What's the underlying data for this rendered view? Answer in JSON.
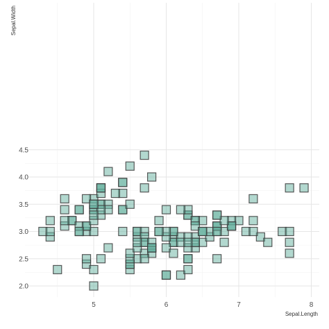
{
  "chart_data": {
    "type": "scatter",
    "title": "",
    "xlabel": "Sepal.Length",
    "ylabel": "Sepal.Width",
    "xlim": [
      4.3,
      7.9
    ],
    "ylim": [
      2.0,
      4.4
    ],
    "x_ticks": [
      5,
      6,
      7,
      8
    ],
    "y_ticks": [
      2.0,
      2.5,
      3.0,
      3.5,
      4.0,
      4.5
    ],
    "x_tick_labels": [
      "5",
      "6",
      "7",
      "8"
    ],
    "y_tick_labels": [
      "2.0",
      "2.5",
      "3.0",
      "3.5",
      "4.0",
      "4.5"
    ],
    "grid": true,
    "legend": "none",
    "marker": "square",
    "colors": {
      "fill": "#66b2a0",
      "stroke": "#3d3d3d",
      "background": "#ffffff",
      "grid": "#e6e6e6"
    },
    "points": [
      [
        5.1,
        3.5
      ],
      [
        4.9,
        3.0
      ],
      [
        4.7,
        3.2
      ],
      [
        4.6,
        3.1
      ],
      [
        5.0,
        3.6
      ],
      [
        5.4,
        3.9
      ],
      [
        4.6,
        3.4
      ],
      [
        5.0,
        3.4
      ],
      [
        4.4,
        2.9
      ],
      [
        4.9,
        3.1
      ],
      [
        5.4,
        3.7
      ],
      [
        4.8,
        3.4
      ],
      [
        4.8,
        3.0
      ],
      [
        4.3,
        3.0
      ],
      [
        5.8,
        4.0
      ],
      [
        5.7,
        4.4
      ],
      [
        5.4,
        3.9
      ],
      [
        5.1,
        3.5
      ],
      [
        5.7,
        3.8
      ],
      [
        5.1,
        3.8
      ],
      [
        5.4,
        3.4
      ],
      [
        5.1,
        3.7
      ],
      [
        4.6,
        3.6
      ],
      [
        5.1,
        3.3
      ],
      [
        4.8,
        3.4
      ],
      [
        5.0,
        3.0
      ],
      [
        5.0,
        3.4
      ],
      [
        5.2,
        3.5
      ],
      [
        5.2,
        3.4
      ],
      [
        4.7,
        3.2
      ],
      [
        4.8,
        3.1
      ],
      [
        5.4,
        3.4
      ],
      [
        5.2,
        4.1
      ],
      [
        5.5,
        4.2
      ],
      [
        4.9,
        3.1
      ],
      [
        5.0,
        3.2
      ],
      [
        5.5,
        3.5
      ],
      [
        4.9,
        3.6
      ],
      [
        4.4,
        3.0
      ],
      [
        5.1,
        3.4
      ],
      [
        5.0,
        3.5
      ],
      [
        4.5,
        2.3
      ],
      [
        4.4,
        3.2
      ],
      [
        5.0,
        3.5
      ],
      [
        5.1,
        3.8
      ],
      [
        4.8,
        3.0
      ],
      [
        5.1,
        3.8
      ],
      [
        4.6,
        3.2
      ],
      [
        5.3,
        3.7
      ],
      [
        5.0,
        3.3
      ],
      [
        7.0,
        3.2
      ],
      [
        6.4,
        3.2
      ],
      [
        6.9,
        3.1
      ],
      [
        5.5,
        2.3
      ],
      [
        6.5,
        2.8
      ],
      [
        5.7,
        2.8
      ],
      [
        6.3,
        3.3
      ],
      [
        4.9,
        2.4
      ],
      [
        6.6,
        2.9
      ],
      [
        5.2,
        2.7
      ],
      [
        5.0,
        2.0
      ],
      [
        5.9,
        3.0
      ],
      [
        6.0,
        2.2
      ],
      [
        6.1,
        2.9
      ],
      [
        5.6,
        2.9
      ],
      [
        6.7,
        3.1
      ],
      [
        5.6,
        3.0
      ],
      [
        5.8,
        2.7
      ],
      [
        6.2,
        2.2
      ],
      [
        5.6,
        2.5
      ],
      [
        5.9,
        3.2
      ],
      [
        6.1,
        2.8
      ],
      [
        6.3,
        2.5
      ],
      [
        6.1,
        2.8
      ],
      [
        6.4,
        2.9
      ],
      [
        6.6,
        3.0
      ],
      [
        6.8,
        2.8
      ],
      [
        6.7,
        3.0
      ],
      [
        6.0,
        2.9
      ],
      [
        5.7,
        2.6
      ],
      [
        5.5,
        2.4
      ],
      [
        5.5,
        2.4
      ],
      [
        5.8,
        2.7
      ],
      [
        6.0,
        2.7
      ],
      [
        5.4,
        3.0
      ],
      [
        6.0,
        3.4
      ],
      [
        6.7,
        3.1
      ],
      [
        6.3,
        2.3
      ],
      [
        5.6,
        3.0
      ],
      [
        5.5,
        2.5
      ],
      [
        5.5,
        2.6
      ],
      [
        6.1,
        3.0
      ],
      [
        5.8,
        2.6
      ],
      [
        5.0,
        2.3
      ],
      [
        5.6,
        2.7
      ],
      [
        5.7,
        3.0
      ],
      [
        5.7,
        2.9
      ],
      [
        6.2,
        2.9
      ],
      [
        5.1,
        2.5
      ],
      [
        5.7,
        2.8
      ],
      [
        6.3,
        3.3
      ],
      [
        5.8,
        2.7
      ],
      [
        7.1,
        3.0
      ],
      [
        6.3,
        2.9
      ],
      [
        6.5,
        3.0
      ],
      [
        7.6,
        3.0
      ],
      [
        4.9,
        2.5
      ],
      [
        7.3,
        2.9
      ],
      [
        6.7,
        2.5
      ],
      [
        7.2,
        3.6
      ],
      [
        6.5,
        3.2
      ],
      [
        6.4,
        2.7
      ],
      [
        6.8,
        3.0
      ],
      [
        5.7,
        2.5
      ],
      [
        5.8,
        2.8
      ],
      [
        6.4,
        3.2
      ],
      [
        6.5,
        3.0
      ],
      [
        7.7,
        3.8
      ],
      [
        7.7,
        2.6
      ],
      [
        6.0,
        2.2
      ],
      [
        6.9,
        3.2
      ],
      [
        5.6,
        2.8
      ],
      [
        7.7,
        2.8
      ],
      [
        6.3,
        2.7
      ],
      [
        6.7,
        3.3
      ],
      [
        7.2,
        3.2
      ],
      [
        6.2,
        2.8
      ],
      [
        6.1,
        3.0
      ],
      [
        6.4,
        2.8
      ],
      [
        7.2,
        3.0
      ],
      [
        7.4,
        2.8
      ],
      [
        7.9,
        3.8
      ],
      [
        6.4,
        2.8
      ],
      [
        6.3,
        2.8
      ],
      [
        6.1,
        2.6
      ],
      [
        7.7,
        3.0
      ],
      [
        6.3,
        3.4
      ],
      [
        6.4,
        3.1
      ],
      [
        6.0,
        3.0
      ],
      [
        6.9,
        3.1
      ],
      [
        6.7,
        3.1
      ],
      [
        6.9,
        3.1
      ],
      [
        5.8,
        2.7
      ],
      [
        6.8,
        3.2
      ],
      [
        6.7,
        3.3
      ],
      [
        6.7,
        3.0
      ],
      [
        6.3,
        2.5
      ],
      [
        6.5,
        3.0
      ],
      [
        6.2,
        3.4
      ],
      [
        5.9,
        3.0
      ]
    ]
  }
}
